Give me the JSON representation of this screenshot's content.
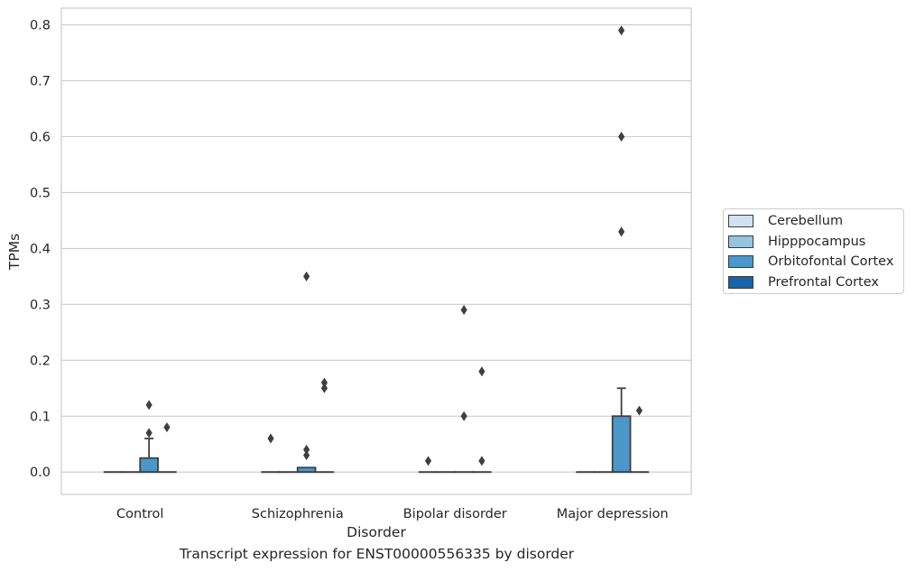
{
  "chart_data": {
    "type": "box",
    "title": "",
    "xlabel": "Disorder",
    "ylabel": "TPMs",
    "caption": "Transcript expression for ENST00000556335 by disorder",
    "ylim": [
      -0.04,
      0.83
    ],
    "yticks": [
      "0.0",
      "0.1",
      "0.2",
      "0.3",
      "0.4",
      "0.5",
      "0.6",
      "0.7",
      "0.8"
    ],
    "ytick_values": [
      0,
      0.1,
      0.2,
      0.3,
      0.4,
      0.5,
      0.6,
      0.7,
      0.8
    ],
    "grid": "horizontal",
    "legend_position": "right",
    "categories": [
      "Control",
      "Schizophrenia",
      "Bipolar disorder",
      "Major depression"
    ],
    "series": [
      {
        "name": "Cerebellum",
        "color": "#d0e1f2",
        "boxes": [
          {
            "q1": 0,
            "median": 0,
            "q3": 0,
            "whisker_low": 0,
            "whisker_high": 0,
            "outliers": []
          },
          {
            "q1": 0,
            "median": 0,
            "q3": 0,
            "whisker_low": 0,
            "whisker_high": 0,
            "outliers": [
              0.06
            ]
          },
          {
            "q1": 0,
            "median": 0,
            "q3": 0,
            "whisker_low": 0,
            "whisker_high": 0,
            "outliers": [
              0.02
            ]
          },
          {
            "q1": 0,
            "median": 0,
            "q3": 0,
            "whisker_low": 0,
            "whisker_high": 0,
            "outliers": []
          }
        ]
      },
      {
        "name": "Hipppocampus",
        "color": "#94c4df",
        "boxes": [
          {
            "q1": 0,
            "median": 0,
            "q3": 0,
            "whisker_low": 0,
            "whisker_high": 0,
            "outliers": []
          },
          {
            "q1": 0,
            "median": 0,
            "q3": 0,
            "whisker_low": 0,
            "whisker_high": 0,
            "outliers": []
          },
          {
            "q1": 0,
            "median": 0,
            "q3": 0,
            "whisker_low": 0,
            "whisker_high": 0,
            "outliers": []
          },
          {
            "q1": 0,
            "median": 0,
            "q3": 0,
            "whisker_low": 0,
            "whisker_high": 0,
            "outliers": []
          }
        ]
      },
      {
        "name": "Orbitofontal Cortex",
        "color": "#4a98c9",
        "boxes": [
          {
            "q1": 0,
            "median": 0,
            "q3": 0.025,
            "whisker_low": 0,
            "whisker_high": 0.06,
            "outliers": [
              0.07,
              0.12
            ]
          },
          {
            "q1": 0,
            "median": 0,
            "q3": 0.008,
            "whisker_low": 0,
            "whisker_high": 0.008,
            "outliers": [
              0.03,
              0.04,
              0.35
            ]
          },
          {
            "q1": 0,
            "median": 0,
            "q3": 0,
            "whisker_low": 0,
            "whisker_high": 0,
            "outliers": [
              0.1,
              0.29
            ]
          },
          {
            "q1": 0,
            "median": 0,
            "q3": 0.1,
            "whisker_low": 0,
            "whisker_high": 0.15,
            "outliers": [
              0.43,
              0.6,
              0.79
            ]
          }
        ]
      },
      {
        "name": "Prefrontal Cortex",
        "color": "#1764ab",
        "boxes": [
          {
            "q1": 0,
            "median": 0,
            "q3": 0,
            "whisker_low": 0,
            "whisker_high": 0,
            "outliers": [
              0.08
            ]
          },
          {
            "q1": 0,
            "median": 0,
            "q3": 0,
            "whisker_low": 0,
            "whisker_high": 0,
            "outliers": [
              0.15,
              0.16
            ]
          },
          {
            "q1": 0,
            "median": 0,
            "q3": 0,
            "whisker_low": 0,
            "whisker_high": 0,
            "outliers": [
              0.02,
              0.18
            ]
          },
          {
            "q1": 0,
            "median": 0,
            "q3": 0,
            "whisker_low": 0,
            "whisker_high": 0,
            "outliers": [
              0.11
            ]
          }
        ]
      }
    ]
  },
  "colors": {
    "grid": "#cccccc",
    "frame": "#cccccc",
    "box_edge": "#3f3f3f",
    "outlier": "#3f3f3f"
  }
}
